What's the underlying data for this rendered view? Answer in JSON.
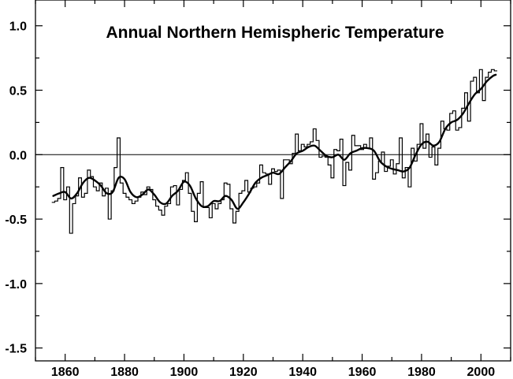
{
  "chart_data": {
    "type": "line",
    "title": "Annual Northern Hemispheric Temperature",
    "xlabel": "",
    "ylabel": "",
    "xlim": [
      1850,
      2010
    ],
    "ylim": [
      -1.6,
      1.2
    ],
    "x_ticks": [
      1860,
      1880,
      1900,
      1920,
      1940,
      1960,
      1980,
      2000
    ],
    "y_ticks": [
      1.0,
      0.5,
      0.0,
      -0.5,
      -1.0,
      -1.5
    ],
    "y_tick_labels": [
      "1.0",
      "0.5",
      "0.0",
      "-0.5",
      "-1.0",
      "-1.5"
    ],
    "zero_line": 0.0,
    "grid": false,
    "legend": "none",
    "series": [
      {
        "style": "step",
        "x": [
          1856,
          1857,
          1858,
          1859,
          1860,
          1861,
          1862,
          1863,
          1864,
          1865,
          1866,
          1867,
          1868,
          1869,
          1870,
          1871,
          1872,
          1873,
          1874,
          1875,
          1876,
          1877,
          1878,
          1879,
          1880,
          1881,
          1882,
          1883,
          1884,
          1885,
          1886,
          1887,
          1888,
          1889,
          1890,
          1891,
          1892,
          1893,
          1894,
          1895,
          1896,
          1897,
          1898,
          1899,
          1900,
          1901,
          1902,
          1903,
          1904,
          1905,
          1906,
          1907,
          1908,
          1909,
          1910,
          1911,
          1912,
          1913,
          1914,
          1915,
          1916,
          1917,
          1918,
          1919,
          1920,
          1921,
          1922,
          1923,
          1924,
          1925,
          1926,
          1927,
          1928,
          1929,
          1930,
          1931,
          1932,
          1933,
          1934,
          1935,
          1936,
          1937,
          1938,
          1939,
          1940,
          1941,
          1942,
          1943,
          1944,
          1945,
          1946,
          1947,
          1948,
          1949,
          1950,
          1951,
          1952,
          1953,
          1954,
          1955,
          1956,
          1957,
          1958,
          1959,
          1960,
          1961,
          1962,
          1963,
          1964,
          1965,
          1966,
          1967,
          1968,
          1969,
          1970,
          1971,
          1972,
          1973,
          1974,
          1975,
          1976,
          1977,
          1978,
          1979,
          1980,
          1981,
          1982,
          1983,
          1984,
          1985,
          1986,
          1987,
          1988,
          1989,
          1990,
          1991,
          1992,
          1993,
          1994,
          1995,
          1996,
          1997,
          1998,
          1999,
          2000,
          2001,
          2002,
          2003,
          2004,
          2005
        ],
        "values": [
          -0.37,
          -0.36,
          -0.34,
          -0.1,
          -0.35,
          -0.25,
          -0.61,
          -0.38,
          -0.32,
          -0.18,
          -0.33,
          -0.3,
          -0.12,
          -0.17,
          -0.25,
          -0.28,
          -0.22,
          -0.32,
          -0.26,
          -0.5,
          -0.28,
          -0.1,
          0.13,
          -0.22,
          -0.3,
          -0.33,
          -0.35,
          -0.38,
          -0.36,
          -0.33,
          -0.29,
          -0.31,
          -0.25,
          -0.27,
          -0.35,
          -0.4,
          -0.43,
          -0.47,
          -0.4,
          -0.38,
          -0.25,
          -0.24,
          -0.39,
          -0.27,
          -0.2,
          -0.14,
          -0.3,
          -0.44,
          -0.52,
          -0.3,
          -0.21,
          -0.41,
          -0.41,
          -0.49,
          -0.38,
          -0.42,
          -0.38,
          -0.35,
          -0.22,
          -0.23,
          -0.42,
          -0.53,
          -0.44,
          -0.3,
          -0.28,
          -0.2,
          -0.29,
          -0.26,
          -0.25,
          -0.22,
          -0.08,
          -0.14,
          -0.15,
          -0.23,
          -0.11,
          -0.13,
          -0.12,
          -0.34,
          -0.04,
          -0.04,
          -0.07,
          0.01,
          0.16,
          0.03,
          0.08,
          0.06,
          0.08,
          0.1,
          0.2,
          0.11,
          -0.02,
          -0.01,
          -0.02,
          -0.08,
          -0.18,
          0.04,
          0.03,
          0.12,
          -0.24,
          -0.06,
          -0.12,
          0.15,
          0.07,
          0.07,
          0.04,
          0.08,
          0.05,
          0.13,
          -0.19,
          -0.14,
          -0.05,
          0.02,
          -0.13,
          -0.09,
          -0.04,
          -0.15,
          -0.07,
          0.13,
          -0.18,
          -0.1,
          -0.25,
          0.05,
          -0.05,
          0.08,
          0.24,
          0.05,
          0.16,
          -0.02,
          0.06,
          -0.08,
          0.05,
          0.26,
          0.2,
          0.19,
          0.32,
          0.34,
          0.19,
          0.21,
          0.36,
          0.48,
          0.26,
          0.57,
          0.6,
          0.48,
          0.66,
          0.42,
          0.6,
          0.64,
          0.66,
          0.65
        ]
      },
      {
        "style": "smooth",
        "x": [
          1856,
          1858,
          1860,
          1862,
          1864,
          1866,
          1868,
          1870,
          1872,
          1874,
          1876,
          1878,
          1880,
          1882,
          1884,
          1886,
          1888,
          1890,
          1892,
          1894,
          1896,
          1898,
          1900,
          1902,
          1904,
          1906,
          1908,
          1910,
          1912,
          1914,
          1916,
          1918,
          1920,
          1922,
          1924,
          1926,
          1928,
          1930,
          1932,
          1934,
          1936,
          1938,
          1940,
          1942,
          1944,
          1946,
          1948,
          1950,
          1952,
          1954,
          1956,
          1958,
          1960,
          1962,
          1964,
          1966,
          1968,
          1970,
          1972,
          1974,
          1976,
          1978,
          1980,
          1982,
          1984,
          1986,
          1988,
          1990,
          1992,
          1994,
          1996,
          1998,
          2000,
          2002,
          2004,
          2005
        ],
        "values": [
          -0.32,
          -0.3,
          -0.29,
          -0.34,
          -0.3,
          -0.22,
          -0.18,
          -0.2,
          -0.24,
          -0.3,
          -0.29,
          -0.18,
          -0.19,
          -0.29,
          -0.33,
          -0.31,
          -0.27,
          -0.31,
          -0.37,
          -0.38,
          -0.32,
          -0.28,
          -0.21,
          -0.24,
          -0.34,
          -0.4,
          -0.4,
          -0.36,
          -0.36,
          -0.32,
          -0.35,
          -0.42,
          -0.37,
          -0.3,
          -0.22,
          -0.18,
          -0.16,
          -0.14,
          -0.15,
          -0.1,
          -0.05,
          0.01,
          0.03,
          0.06,
          0.07,
          0.03,
          -0.01,
          -0.02,
          0.0,
          -0.04,
          0.01,
          0.03,
          0.05,
          0.05,
          0.03,
          -0.05,
          -0.09,
          -0.11,
          -0.12,
          -0.13,
          -0.1,
          0.0,
          0.08,
          0.1,
          0.07,
          0.1,
          0.2,
          0.25,
          0.27,
          0.32,
          0.4,
          0.47,
          0.51,
          0.57,
          0.61,
          0.62
        ]
      }
    ]
  }
}
